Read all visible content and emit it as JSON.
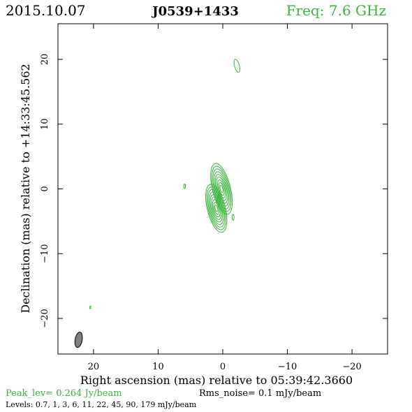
{
  "header": {
    "date": "2015.10.07",
    "source": "J0539+1433",
    "freq": "Freq: 7.6 GHz"
  },
  "footer": {
    "peak": "Peak_lev=  0.264 Jy/beam",
    "rms": "Rms_noise=  0.1 mJy/beam",
    "levels": "Levels: 0.7,   1,   3,   6,   11,   22,   45,   90,  179 mJy/beam"
  },
  "colors": {
    "contour": "#3cb43c",
    "axis": "#000000",
    "beam_fill": "#808080"
  },
  "chart_data": {
    "type": "contour",
    "xlabel": "Right ascension (mas) relative to 05:39:42.3660",
    "ylabel": "Declination (mas) relative to +14:33:45.562",
    "xlim": [
      25.5,
      -25.5
    ],
    "ylim": [
      -25.5,
      25.5
    ],
    "x_ticks": [
      20,
      10,
      0,
      -10,
      -20
    ],
    "y_ticks": [
      20,
      10,
      0,
      -10,
      -20
    ],
    "x_tick_labels": [
      "20",
      "10",
      "0",
      "−10",
      "−20"
    ],
    "y_tick_labels": [
      "20",
      "10",
      "0",
      "−10",
      "−20"
    ],
    "peak_jy_per_beam": 0.264,
    "rms_noise_mjy_per_beam": 0.1,
    "contour_levels_mjy": [
      0.7,
      1,
      3,
      6,
      11,
      22,
      45,
      90,
      179
    ],
    "core": {
      "x": 0,
      "y": 0,
      "components": [
        {
          "dx": 0.2,
          "dy": 0.0,
          "rx": 1.25,
          "ry": 3.6,
          "angle_deg": -14
        },
        {
          "dx": 1.0,
          "dy": -3.0,
          "rx": 1.25,
          "ry": 3.4,
          "angle_deg": -14
        }
      ],
      "level_scales": [
        1.12,
        1.0,
        0.88,
        0.76,
        0.64,
        0.52,
        0.4,
        0.28,
        0.16
      ]
    },
    "islands": [
      {
        "x": -2.2,
        "y": 19.0,
        "rx": 0.38,
        "ry": 1.05,
        "angle_deg": -15
      },
      {
        "x": 5.9,
        "y": 0.4,
        "rx": 0.12,
        "ry": 0.35,
        "angle_deg": 0
      },
      {
        "x": -1.6,
        "y": -4.4,
        "rx": 0.15,
        "ry": 0.45,
        "angle_deg": 0
      },
      {
        "x": 20.5,
        "y": -18.3,
        "rx": 0.08,
        "ry": 0.22,
        "angle_deg": 0
      }
    ],
    "beam": {
      "x": 22.3,
      "y": -23.3,
      "major_mas": 2.4,
      "minor_mas": 1.1,
      "angle_deg": 10
    }
  }
}
